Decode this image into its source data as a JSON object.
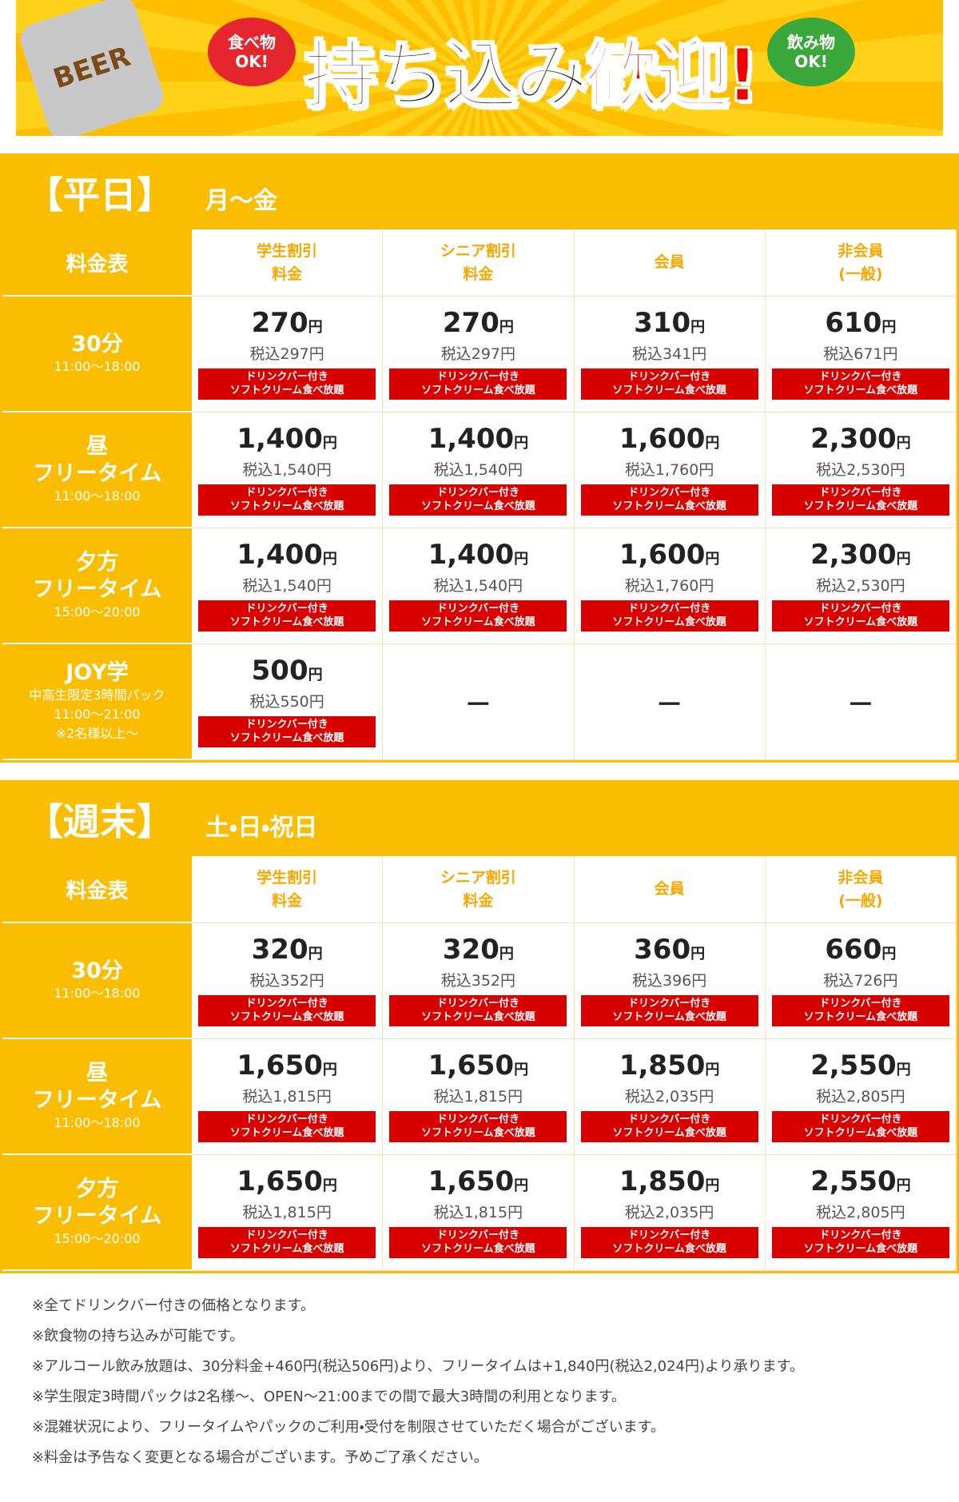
{
  "banner": {
    "title_black": "持ち込み",
    "title_red": "歓迎!",
    "food": [
      "食べ物",
      "OK!"
    ],
    "drink": [
      "飲み物",
      "OK!"
    ],
    "can_label": "BEER"
  },
  "unit": "円",
  "badge": [
    "ドリンクバー付き",
    "ソフトクリーム食べ放題"
  ],
  "sections": [
    {
      "title": "【平日】",
      "days": "月～金",
      "corner": "料金表",
      "columns": [
        [
          "学生割引",
          "料金"
        ],
        [
          "シニア割引",
          "料金"
        ],
        [
          "会員"
        ],
        [
          "非会員",
          "(一般)"
        ]
      ],
      "rows": [
        {
          "label": [
            "30分"
          ],
          "notes": [
            "11:00～18:00"
          ],
          "cells": [
            {
              "price": "270",
              "tax": "税込297円"
            },
            {
              "price": "270",
              "tax": "税込297円"
            },
            {
              "price": "310",
              "tax": "税込341円"
            },
            {
              "price": "610",
              "tax": "税込671円"
            }
          ]
        },
        {
          "label": [
            "昼",
            "フリータイム"
          ],
          "notes": [
            "11:00～18:00"
          ],
          "cells": [
            {
              "price": "1,400",
              "tax": "税込1,540円"
            },
            {
              "price": "1,400",
              "tax": "税込1,540円"
            },
            {
              "price": "1,600",
              "tax": "税込1,760円"
            },
            {
              "price": "2,300",
              "tax": "税込2,530円"
            }
          ]
        },
        {
          "label": [
            "夕方",
            "フリータイム"
          ],
          "notes": [
            "15:00～20:00"
          ],
          "cells": [
            {
              "price": "1,400",
              "tax": "税込1,540円"
            },
            {
              "price": "1,400",
              "tax": "税込1,540円"
            },
            {
              "price": "1,600",
              "tax": "税込1,760円"
            },
            {
              "price": "2,300",
              "tax": "税込2,530円"
            }
          ]
        },
        {
          "label": [
            "JOY学"
          ],
          "notes": [
            "中高生限定3時間パック",
            "11:00～21:00",
            "※2名様以上～"
          ],
          "cells": [
            {
              "price": "500",
              "tax": "税込550円"
            },
            "－",
            "－",
            "－"
          ]
        }
      ]
    },
    {
      "title": "【週末】",
      "days": "土・日・祝日",
      "corner": "料金表",
      "columns": [
        [
          "学生割引",
          "料金"
        ],
        [
          "シニア割引",
          "料金"
        ],
        [
          "会員"
        ],
        [
          "非会員",
          "(一般)"
        ]
      ],
      "rows": [
        {
          "label": [
            "30分"
          ],
          "notes": [
            "11:00～18:00"
          ],
          "cells": [
            {
              "price": "320",
              "tax": "税込352円"
            },
            {
              "price": "320",
              "tax": "税込352円"
            },
            {
              "price": "360",
              "tax": "税込396円"
            },
            {
              "price": "660",
              "tax": "税込726円"
            }
          ]
        },
        {
          "label": [
            "昼",
            "フリータイム"
          ],
          "notes": [
            "11:00～18:00"
          ],
          "cells": [
            {
              "price": "1,650",
              "tax": "税込1,815円"
            },
            {
              "price": "1,650",
              "tax": "税込1,815円"
            },
            {
              "price": "1,850",
              "tax": "税込2,035円"
            },
            {
              "price": "2,550",
              "tax": "税込2,805円"
            }
          ]
        },
        {
          "label": [
            "夕方",
            "フリータイム"
          ],
          "notes": [
            "15:00～20:00"
          ],
          "cells": [
            {
              "price": "1,650",
              "tax": "税込1,815円"
            },
            {
              "price": "1,650",
              "tax": "税込1,815円"
            },
            {
              "price": "1,850",
              "tax": "税込2,035円"
            },
            {
              "price": "2,550",
              "tax": "税込2,805円"
            }
          ]
        }
      ]
    }
  ],
  "notes": [
    "※全てドリンクバー付きの価格となります。",
    "※飲食物の持ち込みが可能です。",
    "※アルコール飲み放題は、30分料金+460円(税込506円)より、フリータイムは+1,840円(税込2,024円)より承ります。",
    "※学生限定3時間パックは2名様～、OPEN～21:00までの間で最大3時間の利用となります。",
    "※混雑状況により、フリータイムやパックのご利用・受付を制限させていただく場合がございます。",
    "※料金は予告なく変更となる場合がございます。予めご了承ください。"
  ]
}
